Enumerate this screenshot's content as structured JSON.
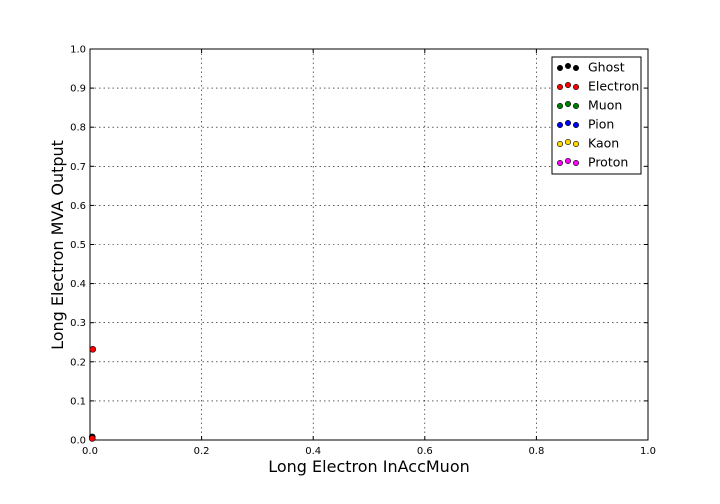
{
  "chart_data": {
    "type": "scatter",
    "xlabel": "Long Electron InAccMuon",
    "ylabel": "Long Electron MVA Output",
    "xlim": [
      0.0,
      1.0
    ],
    "ylim": [
      0.0,
      1.0
    ],
    "x_ticks": [
      "0.0",
      "0.2",
      "0.4",
      "0.6",
      "0.8",
      "1.0"
    ],
    "y_ticks": [
      "0.0",
      "0.1",
      "0.2",
      "0.3",
      "0.4",
      "0.5",
      "0.6",
      "0.7",
      "0.8",
      "0.9",
      "1.0"
    ],
    "x_tick_values": [
      0.0,
      0.2,
      0.4,
      0.6,
      0.8,
      1.0
    ],
    "y_tick_values": [
      0.0,
      0.1,
      0.2,
      0.3,
      0.4,
      0.5,
      0.6,
      0.7,
      0.8,
      0.9,
      1.0
    ],
    "grid": true,
    "legend_position": "top-right",
    "series": [
      {
        "name": "Ghost",
        "color": "#000000",
        "x": [
          0.004,
          0.004
        ],
        "y": [
          0.005,
          0.008
        ]
      },
      {
        "name": "Electron",
        "color": "#ff0000",
        "x": [
          0.005,
          0.004
        ],
        "y": [
          0.232,
          0.004
        ]
      },
      {
        "name": "Muon",
        "color": "#008000",
        "x": [],
        "y": []
      },
      {
        "name": "Pion",
        "color": "#0000ff",
        "x": [],
        "y": []
      },
      {
        "name": "Kaon",
        "color": "#ffd700",
        "x": [],
        "y": []
      },
      {
        "name": "Proton",
        "color": "#ff00ff",
        "x": [],
        "y": []
      }
    ]
  }
}
